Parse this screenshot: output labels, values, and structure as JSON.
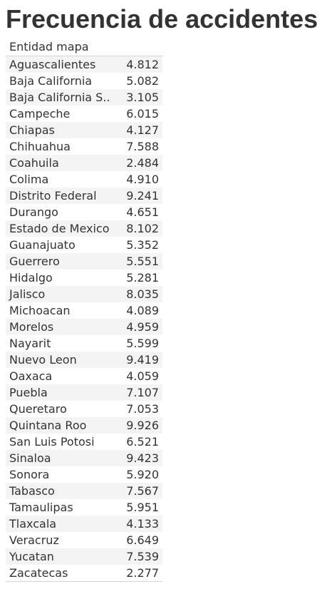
{
  "title": "Frecuencia de accidentes",
  "chart_data": {
    "type": "table",
    "title": "Frecuencia de accidentes",
    "column_header": "Entidad mapa",
    "rows": [
      {
        "label": "Aguascalientes",
        "value": "4.812"
      },
      {
        "label": "Baja California",
        "value": "5.082"
      },
      {
        "label": "Baja California S..",
        "value": "3.105"
      },
      {
        "label": "Campeche",
        "value": "6.015"
      },
      {
        "label": "Chiapas",
        "value": "4.127"
      },
      {
        "label": "Chihuahua",
        "value": "7.588"
      },
      {
        "label": "Coahuila",
        "value": "2.484"
      },
      {
        "label": "Colima",
        "value": "4.910"
      },
      {
        "label": "Distrito Federal",
        "value": "9.241"
      },
      {
        "label": "Durango",
        "value": "4.651"
      },
      {
        "label": "Estado de Mexico",
        "value": "8.102"
      },
      {
        "label": "Guanajuato",
        "value": "5.352"
      },
      {
        "label": "Guerrero",
        "value": "5.551"
      },
      {
        "label": "Hidalgo",
        "value": "5.281"
      },
      {
        "label": "Jalisco",
        "value": "8.035"
      },
      {
        "label": "Michoacan",
        "value": "4.089"
      },
      {
        "label": "Morelos",
        "value": "4.959"
      },
      {
        "label": "Nayarit",
        "value": "5.599"
      },
      {
        "label": "Nuevo Leon",
        "value": "9.419"
      },
      {
        "label": "Oaxaca",
        "value": "4.059"
      },
      {
        "label": "Puebla",
        "value": "7.107"
      },
      {
        "label": "Queretaro",
        "value": "7.053"
      },
      {
        "label": "Quintana Roo",
        "value": "9.926"
      },
      {
        "label": "San Luis Potosi",
        "value": "6.521"
      },
      {
        "label": "Sinaloa",
        "value": "9.423"
      },
      {
        "label": "Sonora",
        "value": "5.920"
      },
      {
        "label": "Tabasco",
        "value": "7.567"
      },
      {
        "label": "Tamaulipas",
        "value": "5.951"
      },
      {
        "label": "Tlaxcala",
        "value": "4.133"
      },
      {
        "label": "Veracruz",
        "value": "6.649"
      },
      {
        "label": "Yucatan",
        "value": "7.539"
      },
      {
        "label": "Zacatecas",
        "value": "2.277"
      }
    ]
  }
}
